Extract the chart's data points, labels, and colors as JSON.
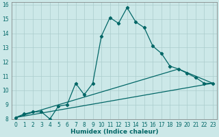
{
  "xlabel": "Humidex (Indice chaleur)",
  "bg_color": "#cce8e8",
  "line_color": "#006666",
  "grid_color": "#aacccc",
  "xlim": [
    -0.5,
    23.5
  ],
  "ylim": [
    8,
    16.2
  ],
  "xticks": [
    0,
    1,
    2,
    3,
    4,
    5,
    6,
    7,
    8,
    9,
    10,
    11,
    12,
    13,
    14,
    15,
    16,
    17,
    18,
    19,
    20,
    21,
    22,
    23
  ],
  "yticks": [
    8,
    9,
    10,
    11,
    12,
    13,
    14,
    15,
    16
  ],
  "curve1_x": [
    0,
    1,
    2,
    3,
    4,
    5,
    6,
    7,
    8,
    9,
    10,
    11,
    12,
    13,
    14,
    15,
    16,
    17,
    18,
    19,
    20,
    21,
    22,
    23
  ],
  "curve1_y": [
    8.1,
    8.35,
    8.5,
    8.5,
    8.0,
    8.9,
    9.0,
    10.5,
    9.7,
    10.5,
    13.8,
    15.1,
    14.7,
    15.8,
    14.8,
    14.4,
    13.1,
    12.6,
    11.7,
    11.5,
    11.2,
    10.9,
    10.5,
    10.5
  ],
  "curve2_x": [
    0,
    23
  ],
  "curve2_y": [
    8.1,
    10.5
  ],
  "curve3_x": [
    0,
    19,
    23
  ],
  "curve3_y": [
    8.1,
    11.5,
    10.5
  ],
  "line_width": 0.9,
  "marker": "D",
  "marker_size": 2.2,
  "tick_fontsize": 5.5,
  "xlabel_fontsize": 6.5,
  "xlabel_fontweight": "bold"
}
